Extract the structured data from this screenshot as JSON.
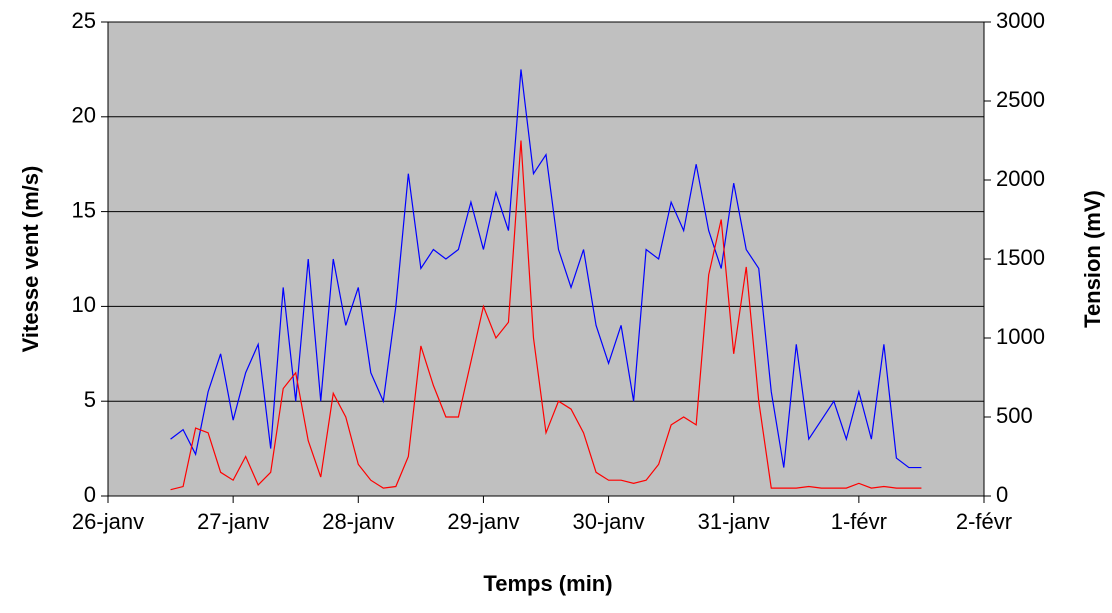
{
  "chart_data": {
    "type": "line",
    "xlabel": "Temps (min)",
    "ylabel": "Vitesse vent (m/s)",
    "y2label": "Tension (mV)",
    "x": [
      0.5,
      0.6,
      0.7,
      0.8,
      0.9,
      1.0,
      1.1,
      1.2,
      1.3,
      1.4,
      1.5,
      1.6,
      1.7,
      1.8,
      1.9,
      2.0,
      2.1,
      2.2,
      2.3,
      2.4,
      2.5,
      2.6,
      2.7,
      2.8,
      2.9,
      3.0,
      3.1,
      3.2,
      3.3,
      3.4,
      3.5,
      3.6,
      3.7,
      3.8,
      3.9,
      4.0,
      4.1,
      4.2,
      4.3,
      4.4,
      4.5,
      4.6,
      4.7,
      4.8,
      4.9,
      5.0,
      5.1,
      5.2,
      5.3,
      5.4,
      5.5,
      5.6,
      5.7,
      5.8,
      5.9,
      6.0,
      6.1,
      6.2,
      6.3,
      6.4,
      6.5
    ],
    "series": [
      {
        "color": "#0000ff",
        "values": [
          3,
          3.5,
          2.2,
          5.5,
          7.5,
          4,
          6.5,
          8,
          2.5,
          11,
          5,
          12.5,
          5,
          12.5,
          9,
          11,
          6.5,
          5,
          10,
          17,
          12,
          13,
          12.5,
          13,
          15.5,
          13,
          16,
          14,
          22.5,
          17,
          18,
          13,
          11,
          13,
          9,
          7,
          9,
          5,
          13,
          12.5,
          15.5,
          14,
          17.5,
          14,
          12,
          16.5,
          13,
          12,
          5.5,
          1.5,
          8,
          3,
          4,
          5,
          3,
          5.5,
          3,
          8,
          2,
          1.5,
          1.5
        ]
      },
      {
        "color": "#ff0000",
        "axis": "y2",
        "values": [
          40,
          60,
          430,
          400,
          150,
          100,
          250,
          70,
          150,
          680,
          780,
          350,
          120,
          650,
          500,
          200,
          100,
          50,
          60,
          250,
          950,
          700,
          500,
          500,
          850,
          1200,
          1000,
          1100,
          2250,
          1000,
          400,
          600,
          550,
          400,
          150,
          100,
          100,
          80,
          100,
          200,
          450,
          500,
          450,
          1400,
          1750,
          900,
          1450,
          600,
          50,
          50,
          50,
          60,
          50,
          50,
          50,
          80,
          50,
          60,
          50,
          50,
          50
        ]
      }
    ],
    "xlim": [
      0,
      7
    ],
    "xticks": [
      {
        "value": 0,
        "label": "26-janv"
      },
      {
        "value": 1,
        "label": "27-janv"
      },
      {
        "value": 2,
        "label": "28-janv"
      },
      {
        "value": 3,
        "label": "29-janv"
      },
      {
        "value": 4,
        "label": "30-janv"
      },
      {
        "value": 5,
        "label": "31-janv"
      },
      {
        "value": 6,
        "label": "1-févr"
      },
      {
        "value": 7,
        "label": "2-févr"
      }
    ],
    "ylim": [
      0,
      25
    ],
    "yticks": [
      0,
      5,
      10,
      15,
      20,
      25
    ],
    "y2lim": [
      0,
      3000
    ],
    "y2ticks": [
      0,
      500,
      1000,
      1500,
      2000,
      2500,
      3000
    ],
    "grid": true,
    "background": "#c0c0c0"
  }
}
